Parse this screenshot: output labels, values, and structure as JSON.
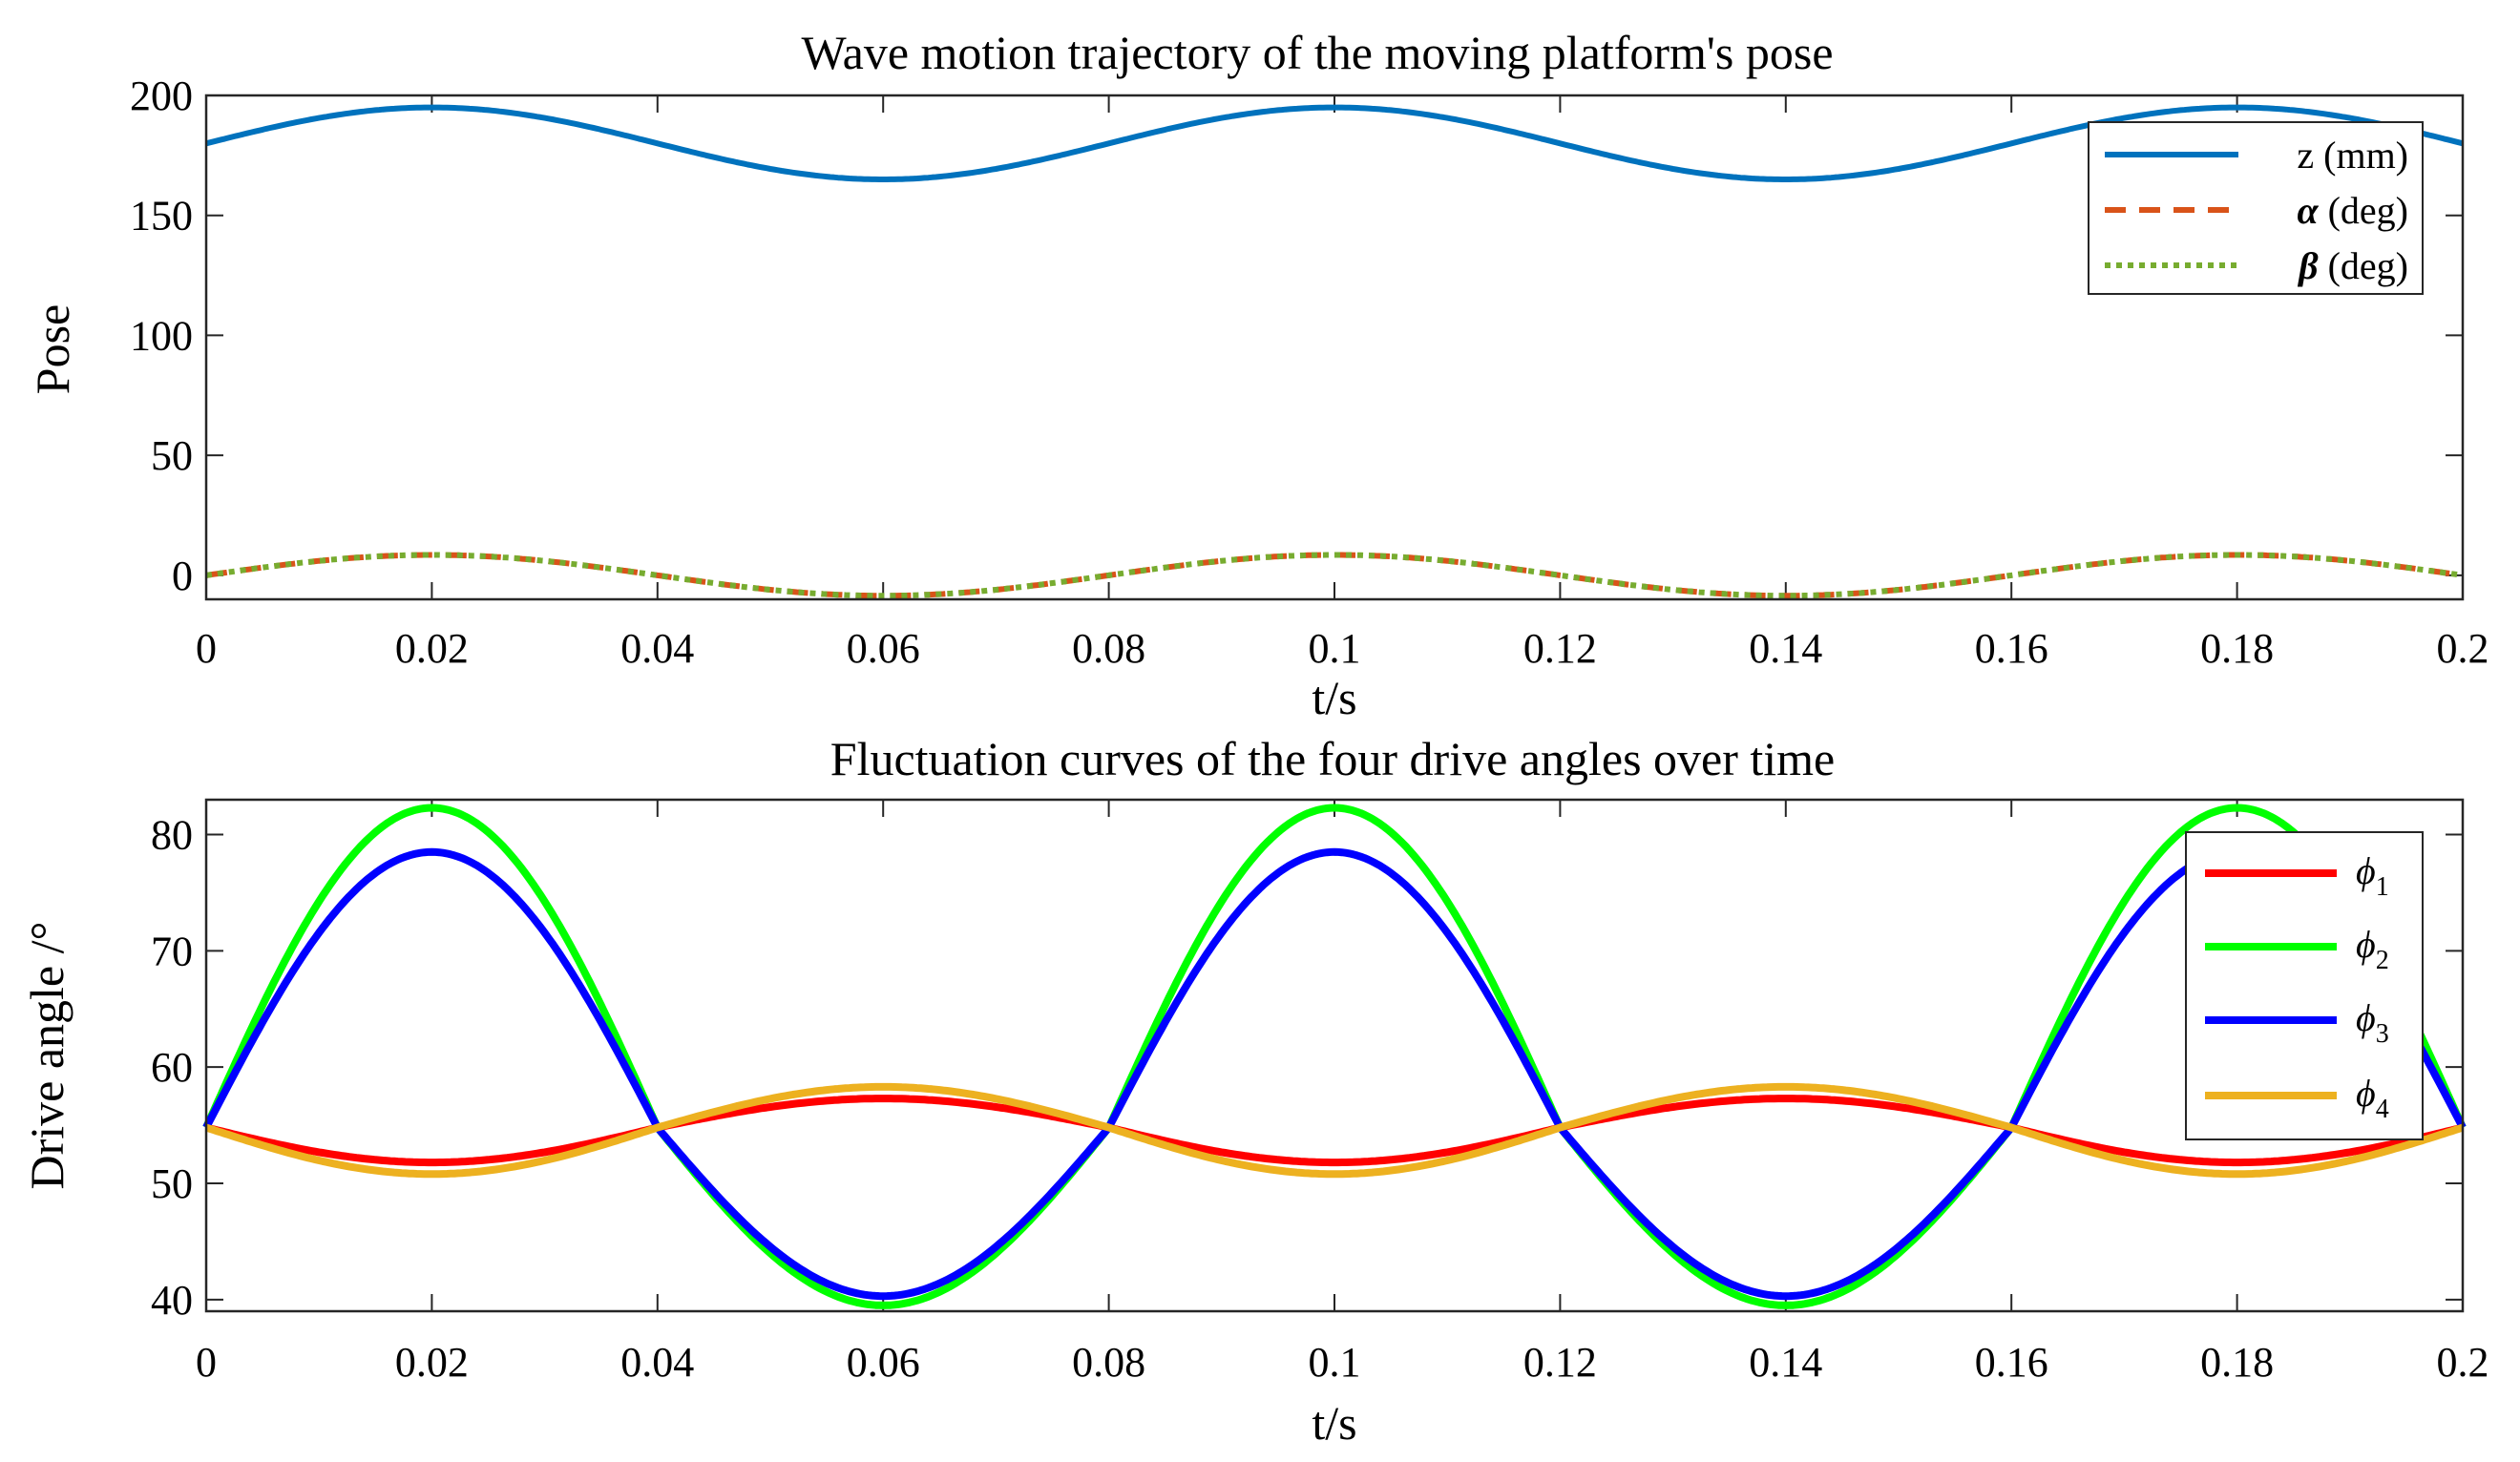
{
  "chart_data": [
    {
      "type": "line",
      "title": "Wave motion trajectory of the moving platform's pose",
      "xlabel": "t/s",
      "ylabel": "Pose",
      "xlim": [
        0,
        0.2
      ],
      "ylim": [
        -10,
        200
      ],
      "xticks": [
        0,
        0.02,
        0.04,
        0.06,
        0.08,
        0.1,
        0.12,
        0.14,
        0.16,
        0.18,
        0.2
      ],
      "xtick_labels": [
        "0",
        "0.02",
        "0.04",
        "0.06",
        "0.08",
        "0.1",
        "0.12",
        "0.14",
        "0.16",
        "0.18",
        "0.2"
      ],
      "yticks": [
        0,
        50,
        100,
        150,
        200
      ],
      "ytick_labels": [
        "0",
        "50",
        "100",
        "150",
        "200"
      ],
      "legend_position": "top-right",
      "series": [
        {
          "name": "z (mm)",
          "symbol": "",
          "unit": "(mm)",
          "label_text": "z (mm)",
          "color": "#0072BD",
          "style": "solid",
          "offset": 180,
          "amplitude": 15,
          "frequency_hz": 12.5
        },
        {
          "name": "α (deg)",
          "symbol": "α",
          "unit": "(deg)",
          "color": "#D95319",
          "style": "dashed",
          "offset": 0,
          "amplitude": 8.5,
          "frequency_hz": 12.5
        },
        {
          "name": "β (deg)",
          "symbol": "β",
          "unit": "(deg)",
          "color": "#77AC30",
          "style": "dotted",
          "offset": 0,
          "amplitude": 8.5,
          "frequency_hz": 12.5
        }
      ]
    },
    {
      "type": "line",
      "title": "Fluctuation curves of the four drive angles over time",
      "xlabel": "t/s",
      "ylabel": "Drive angle /°",
      "xlim": [
        0,
        0.2
      ],
      "ylim": [
        39,
        83
      ],
      "xticks": [
        0,
        0.02,
        0.04,
        0.06,
        0.08,
        0.1,
        0.12,
        0.14,
        0.16,
        0.18,
        0.2
      ],
      "xtick_labels": [
        "0",
        "0.02",
        "0.04",
        "0.06",
        "0.08",
        "0.1",
        "0.12",
        "0.14",
        "0.16",
        "0.18",
        "0.2"
      ],
      "yticks": [
        40,
        50,
        60,
        70,
        80
      ],
      "ytick_labels": [
        "40",
        "50",
        "60",
        "70",
        "80"
      ],
      "legend_position": "right",
      "series": [
        {
          "name": "ϕ1",
          "symbol": "ϕ",
          "sub": "1",
          "color": "#FF0000",
          "style": "solid",
          "center": 54.8,
          "peak_at_crest": 51.8,
          "peak_at_trough": 57.3
        },
        {
          "name": "ϕ2",
          "symbol": "ϕ",
          "sub": "2",
          "color": "#00FF00",
          "style": "solid",
          "center": 54.8,
          "peak_at_crest": 82.3,
          "peak_at_trough": 39.5
        },
        {
          "name": "ϕ3",
          "symbol": "ϕ",
          "sub": "3",
          "color": "#0000FF",
          "style": "solid",
          "center": 54.8,
          "peak_at_crest": 78.5,
          "peak_at_trough": 40.3
        },
        {
          "name": "ϕ4",
          "symbol": "ϕ",
          "sub": "4",
          "color": "#EDB120",
          "style": "solid",
          "center": 54.8,
          "peak_at_crest": 50.8,
          "peak_at_trough": 58.3
        }
      ]
    }
  ]
}
